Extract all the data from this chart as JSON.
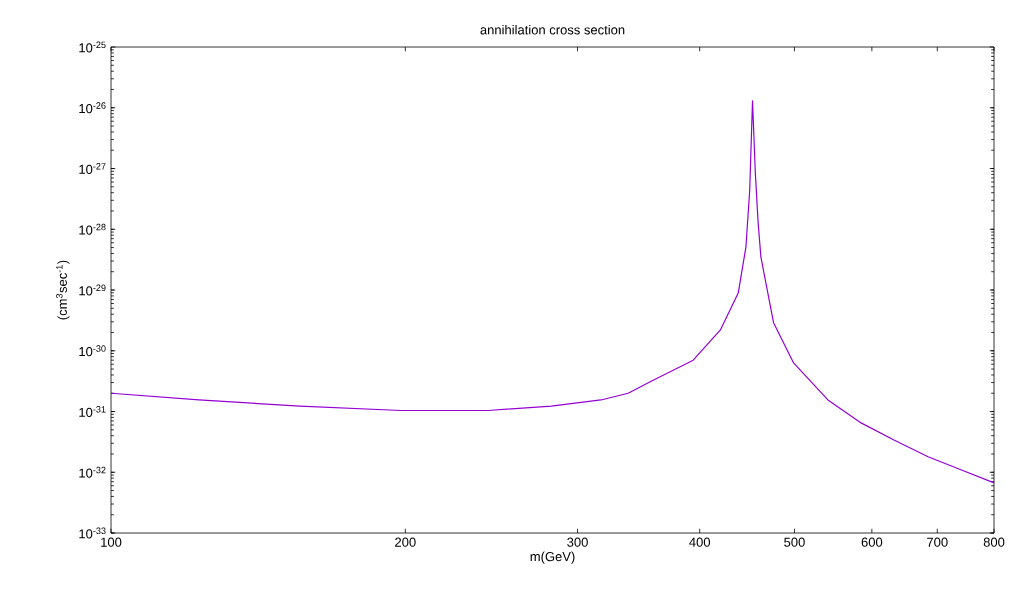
{
  "chart_data": {
    "type": "line",
    "title": "annihilation cross section",
    "xlabel": "m(GeV)",
    "ylabel": "(cm$^{3}$sec$^{-1}$)",
    "log": "xy",
    "xlim": [
      100,
      800
    ],
    "xticks": [
      100,
      200,
      300,
      400,
      500,
      600,
      700,
      800
    ],
    "ylim": [
      1e-33,
      1e-25
    ],
    "yticks": [
      {
        "value": 1e-33,
        "label": "10$^{-33}$"
      },
      {
        "value": 1e-32,
        "label": "10$^{-32}$"
      },
      {
        "value": 1e-31,
        "label": "10$^{-31}$"
      },
      {
        "value": 1e-30,
        "label": "10$^{-30}$"
      },
      {
        "value": 1e-29,
        "label": "10$^{-29}$"
      },
      {
        "value": 1e-28,
        "label": "10$^{-28}$"
      },
      {
        "value": 1e-27,
        "label": "10$^{-27}$"
      },
      {
        "value": 1e-26,
        "label": "10$^{-26}$"
      },
      {
        "value": 1e-25,
        "label": "10$^{-25}$"
      }
    ],
    "x": [
      100,
      123,
      156,
      198,
      243,
      282,
      317,
      338,
      356,
      394,
      420,
      438,
      446,
      450,
      453,
      456,
      459,
      462,
      476,
      499,
      541,
      585,
      632,
      685,
      740,
      800
    ],
    "series": [
      {
        "color": "#9400d3",
        "values": [
          2e-31,
          1.55e-31,
          1.23e-31,
          1.04e-31,
          1.04e-31,
          1.23e-31,
          1.55e-31,
          2e-31,
          3.1e-31,
          7e-31,
          2.2e-30,
          8.9e-30,
          5.1e-29,
          4.4e-28,
          1.3e-26,
          8.4e-28,
          1.3e-28,
          3.5e-29,
          2.9e-30,
          6.3e-31,
          1.55e-31,
          6.5e-32,
          3.4e-32,
          1.8e-32,
          1.1e-32,
          6.7e-33
        ]
      }
    ]
  }
}
